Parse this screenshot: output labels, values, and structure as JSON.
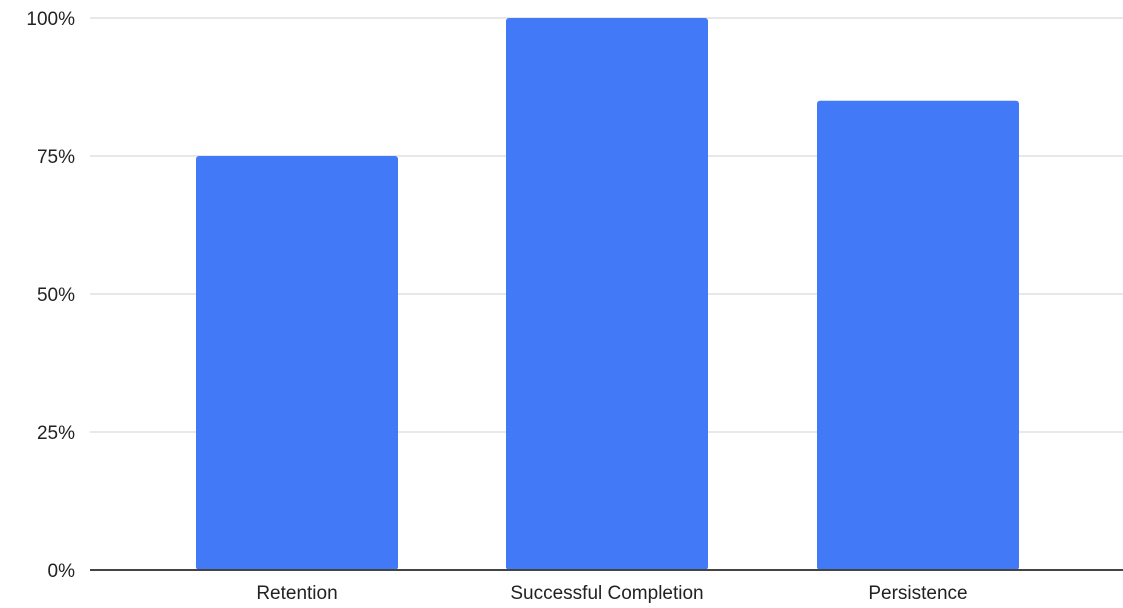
{
  "chart_data": {
    "type": "bar",
    "title": "",
    "xlabel": "",
    "ylabel": "",
    "categories": [
      "Retention",
      "Successful Completion",
      "Persistence"
    ],
    "values": [
      75,
      100,
      85
    ],
    "ylim": [
      0,
      100
    ],
    "yticks": [
      0,
      25,
      50,
      75,
      100
    ],
    "ytick_labels": [
      "0%",
      "25%",
      "50%",
      "75%",
      "100%"
    ],
    "grid": true,
    "legend": "none",
    "bar_color": "#4179f6",
    "grid_color": "#e0e0e0",
    "baseline_color": "#444444"
  }
}
